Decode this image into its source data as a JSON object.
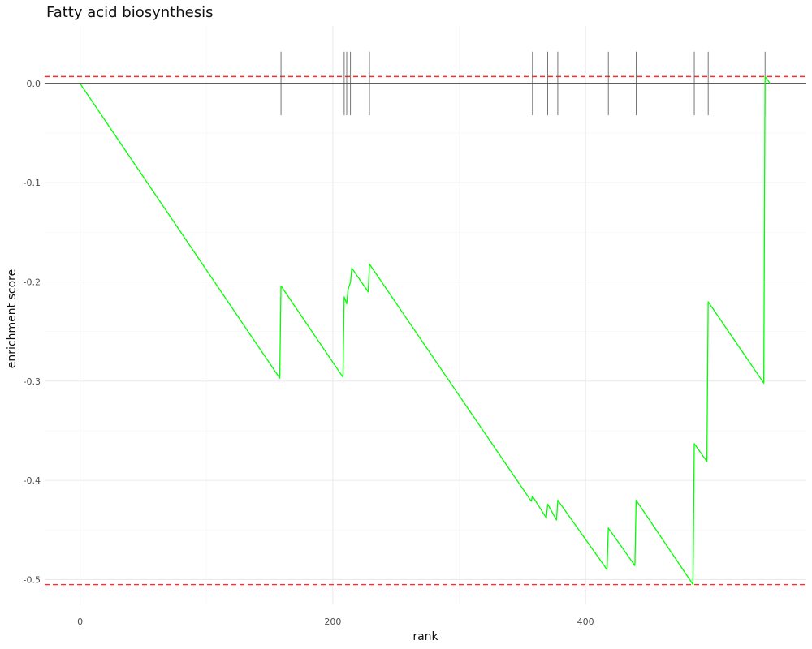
{
  "chart_data": {
    "type": "line",
    "title": "Fatty acid biosynthesis",
    "xlabel": "rank",
    "ylabel": "enrichment score",
    "xlim": [
      -28,
      574
    ],
    "ylim": [
      -0.525,
      0.058
    ],
    "x_ticks": [
      0,
      200,
      400
    ],
    "x_tick_labels": [
      "0",
      "200",
      "400"
    ],
    "y_ticks": [
      0.0,
      -0.1,
      -0.2,
      -0.3,
      -0.4,
      -0.5
    ],
    "y_tick_labels": [
      "0.0",
      "-0.1",
      "-0.2",
      "-0.3",
      "-0.4",
      "-0.5"
    ],
    "grid": true,
    "legend": "none",
    "series": [
      {
        "color": "#00ff00",
        "x": [
          0,
          158,
          159,
          208,
          209,
          211,
          212,
          214,
          215,
          228,
          229,
          357,
          358,
          369,
          370,
          377,
          378,
          417,
          418,
          439,
          440,
          485,
          486,
          496,
          497,
          541,
          542,
          546
        ],
        "y": [
          0.0,
          -0.297,
          -0.204,
          -0.296,
          -0.215,
          -0.222,
          -0.208,
          -0.2,
          -0.186,
          -0.21,
          -0.182,
          -0.421,
          -0.416,
          -0.438,
          -0.424,
          -0.44,
          -0.42,
          -0.49,
          -0.448,
          -0.486,
          -0.42,
          -0.505,
          -0.363,
          -0.381,
          -0.22,
          -0.302,
          0.007,
          0.0
        ]
      }
    ],
    "reference_lines": {
      "horizontal_black": 0.0,
      "red_dashed": [
        0.007,
        -0.505
      ],
      "red_color": "#ff2a2a"
    },
    "hit_ranks": [
      159,
      209,
      211,
      214,
      229,
      358,
      370,
      378,
      418,
      440,
      486,
      497,
      542
    ],
    "hit_tick_range": [
      -0.032,
      0.032
    ]
  }
}
